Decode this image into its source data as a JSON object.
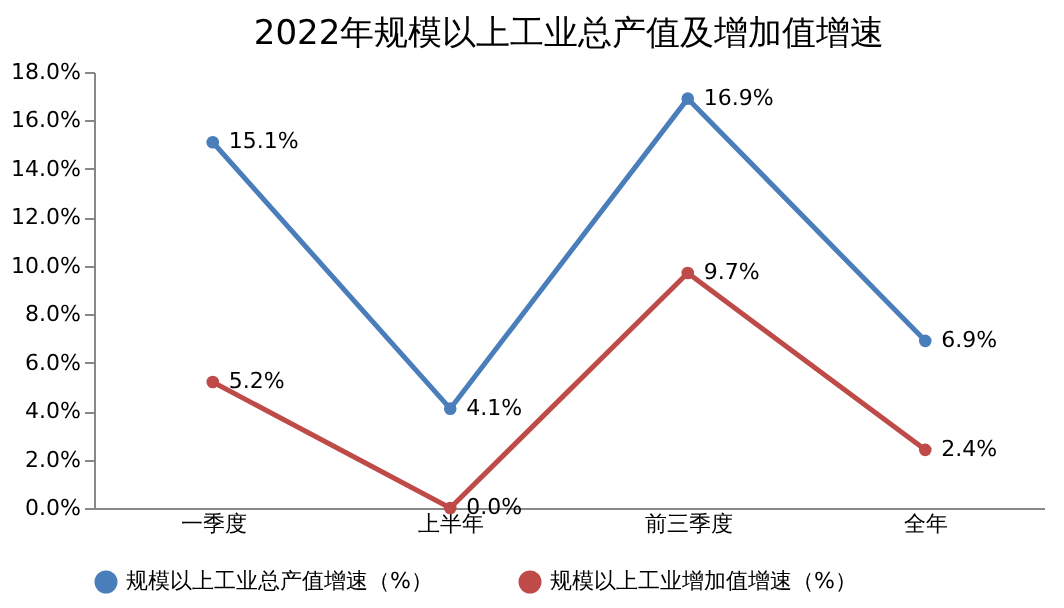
{
  "chart_data": {
    "type": "line",
    "title": "2022年规模以上工业总产值及增加值增速",
    "categories": [
      "一季度",
      "上半年",
      "前三季度",
      "全年"
    ],
    "series": [
      {
        "name": "规模以上工业总产值增速（%）",
        "color": "#4a7ebb",
        "values": [
          15.1,
          4.1,
          16.9,
          6.9
        ],
        "value_labels": [
          "15.1%",
          "4.1%",
          "16.9%",
          "6.9%"
        ]
      },
      {
        "name": "规模以上工业增加值增速（%）",
        "color": "#be4b48",
        "values": [
          5.2,
          0.0,
          9.7,
          2.4
        ],
        "value_labels": [
          "5.2%",
          "0.0%",
          "9.7%",
          "2.4%"
        ]
      }
    ],
    "ylim": [
      0,
      18
    ],
    "yticks": [
      {
        "value": 0,
        "label": "0.0%"
      },
      {
        "value": 2,
        "label": "2.0%"
      },
      {
        "value": 4,
        "label": "4.0%"
      },
      {
        "value": 6,
        "label": "6.0%"
      },
      {
        "value": 8,
        "label": "8.0%"
      },
      {
        "value": 10,
        "label": "10.0%"
      },
      {
        "value": 12,
        "label": "12.0%"
      },
      {
        "value": 14,
        "label": "14.0%"
      },
      {
        "value": 16,
        "label": "16.0%"
      },
      {
        "value": 18,
        "label": "18.0%"
      }
    ],
    "grid": false,
    "legend": "bottom",
    "marker": "circle",
    "line_style": "solid"
  }
}
